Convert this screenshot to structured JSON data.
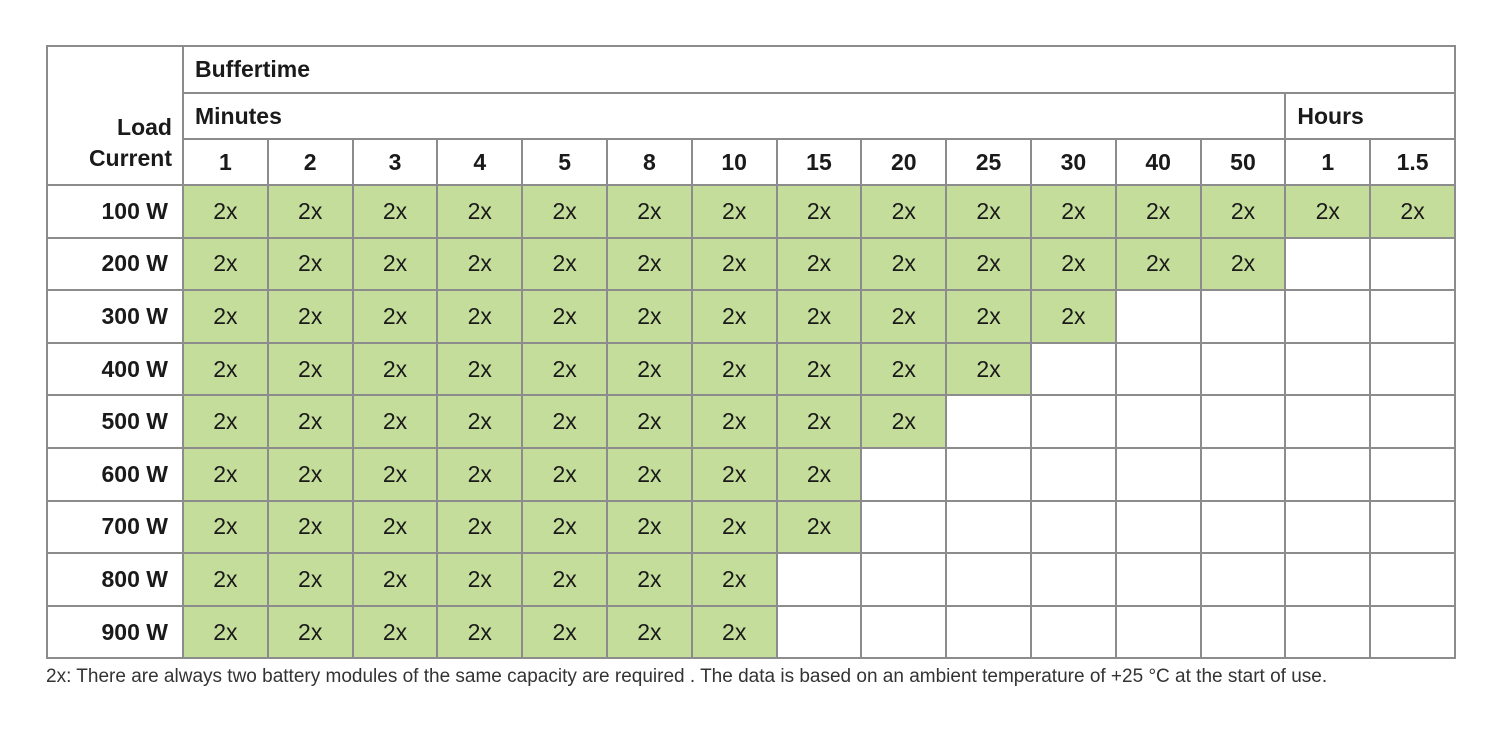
{
  "table": {
    "group_header": "Buffertime",
    "minutes_header": "Minutes",
    "hours_header": "Hours",
    "load_header": [
      "Load",
      "Current"
    ],
    "minute_columns": [
      "1",
      "2",
      "3",
      "4",
      "5",
      "8",
      "10",
      "15",
      "20",
      "25",
      "30",
      "40",
      "50"
    ],
    "hour_columns": [
      "1",
      "1.5"
    ],
    "highlight_color": "#c5dd9b",
    "rows": [
      {
        "label": "100 W",
        "cells": [
          "2x",
          "2x",
          "2x",
          "2x",
          "2x",
          "2x",
          "2x",
          "2x",
          "2x",
          "2x",
          "2x",
          "2x",
          "2x",
          "2x",
          "2x"
        ]
      },
      {
        "label": "200 W",
        "cells": [
          "2x",
          "2x",
          "2x",
          "2x",
          "2x",
          "2x",
          "2x",
          "2x",
          "2x",
          "2x",
          "2x",
          "2x",
          "2x",
          "",
          ""
        ]
      },
      {
        "label": "300 W",
        "cells": [
          "2x",
          "2x",
          "2x",
          "2x",
          "2x",
          "2x",
          "2x",
          "2x",
          "2x",
          "2x",
          "2x",
          "",
          "",
          "",
          ""
        ]
      },
      {
        "label": "400 W",
        "cells": [
          "2x",
          "2x",
          "2x",
          "2x",
          "2x",
          "2x",
          "2x",
          "2x",
          "2x",
          "2x",
          "",
          "",
          "",
          "",
          ""
        ]
      },
      {
        "label": "500 W",
        "cells": [
          "2x",
          "2x",
          "2x",
          "2x",
          "2x",
          "2x",
          "2x",
          "2x",
          "2x",
          "",
          "",
          "",
          "",
          "",
          ""
        ]
      },
      {
        "label": "600 W",
        "cells": [
          "2x",
          "2x",
          "2x",
          "2x",
          "2x",
          "2x",
          "2x",
          "2x",
          "",
          "",
          "",
          "",
          "",
          "",
          ""
        ]
      },
      {
        "label": "700 W",
        "cells": [
          "2x",
          "2x",
          "2x",
          "2x",
          "2x",
          "2x",
          "2x",
          "2x",
          "",
          "",
          "",
          "",
          "",
          "",
          ""
        ]
      },
      {
        "label": "800 W",
        "cells": [
          "2x",
          "2x",
          "2x",
          "2x",
          "2x",
          "2x",
          "2x",
          "",
          "",
          "",
          "",
          "",
          "",
          "",
          ""
        ]
      },
      {
        "label": "900 W",
        "cells": [
          "2x",
          "2x",
          "2x",
          "2x",
          "2x",
          "2x",
          "2x",
          "",
          "",
          "",
          "",
          "",
          "",
          "",
          ""
        ]
      }
    ]
  },
  "footnote": "2x: There are always two battery modules of the same capacity are required . The data is based on an ambient temperature of +25 °C at the start of use."
}
